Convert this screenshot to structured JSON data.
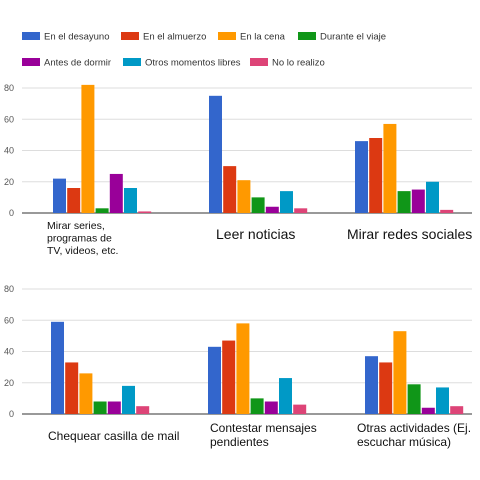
{
  "legend": {
    "entries": [
      {
        "name": "En el desayuno",
        "color": "#3366cc"
      },
      {
        "name": "En el almuerzo",
        "color": "#dc3912"
      },
      {
        "name": "En la cena",
        "color": "#ff9900"
      },
      {
        "name": "Durante el viaje",
        "color": "#109618"
      },
      {
        "name": "Antes de dormir",
        "color": "#990099"
      },
      {
        "name": "Otros momentos libres",
        "color": "#0099c6"
      },
      {
        "name": "No lo realizo",
        "color": "#dd4477"
      }
    ]
  },
  "chart_data": [
    {
      "type": "bar",
      "yticks": [
        0,
        20,
        40,
        60,
        80
      ],
      "ylim": [
        0,
        85
      ],
      "grid": true,
      "legend_position": "top",
      "categories": [
        "Mirar series, programas de TV, videos, etc.",
        "Leer noticias",
        "Mirar redes sociales"
      ],
      "category_lines": [
        [
          "Mirar series,",
          "programas de",
          "TV, videos, etc."
        ],
        [
          "Leer noticias"
        ],
        [
          "Mirar redes sociales"
        ]
      ],
      "series": [
        {
          "name": "En el desayuno",
          "values": [
            22,
            75,
            46
          ]
        },
        {
          "name": "En el almuerzo",
          "values": [
            16,
            30,
            48
          ]
        },
        {
          "name": "En la cena",
          "values": [
            82,
            21,
            57
          ]
        },
        {
          "name": "Durante el viaje",
          "values": [
            3,
            10,
            14
          ]
        },
        {
          "name": "Antes de dormir",
          "values": [
            25,
            4,
            15
          ]
        },
        {
          "name": "Otros momentos libres",
          "values": [
            16,
            14,
            20
          ]
        },
        {
          "name": "No lo realizo",
          "values": [
            1,
            3,
            2
          ]
        }
      ]
    },
    {
      "type": "bar",
      "yticks": [
        0,
        20,
        40,
        60,
        80
      ],
      "ylim": [
        0,
        85
      ],
      "grid": true,
      "categories": [
        "Chequear casilla de mail",
        "Contestar mensajes pendientes",
        "Otras actividades (Ej. escuchar música)"
      ],
      "category_lines": [
        [
          "Chequear casilla de mail"
        ],
        [
          "Contestar mensajes",
          "pendientes"
        ],
        [
          "Otras actividades (Ej.",
          "escuchar música)"
        ]
      ],
      "series": [
        {
          "name": "En el desayuno",
          "values": [
            59,
            43,
            37
          ]
        },
        {
          "name": "En el almuerzo",
          "values": [
            33,
            47,
            33
          ]
        },
        {
          "name": "En la cena",
          "values": [
            26,
            58,
            53
          ]
        },
        {
          "name": "Durante el viaje",
          "values": [
            8,
            10,
            19
          ]
        },
        {
          "name": "Antes de dormir",
          "values": [
            8,
            8,
            4
          ]
        },
        {
          "name": "Otros momentos libres",
          "values": [
            18,
            23,
            17
          ]
        },
        {
          "name": "No lo realizo",
          "values": [
            5,
            6,
            5
          ]
        }
      ]
    }
  ]
}
